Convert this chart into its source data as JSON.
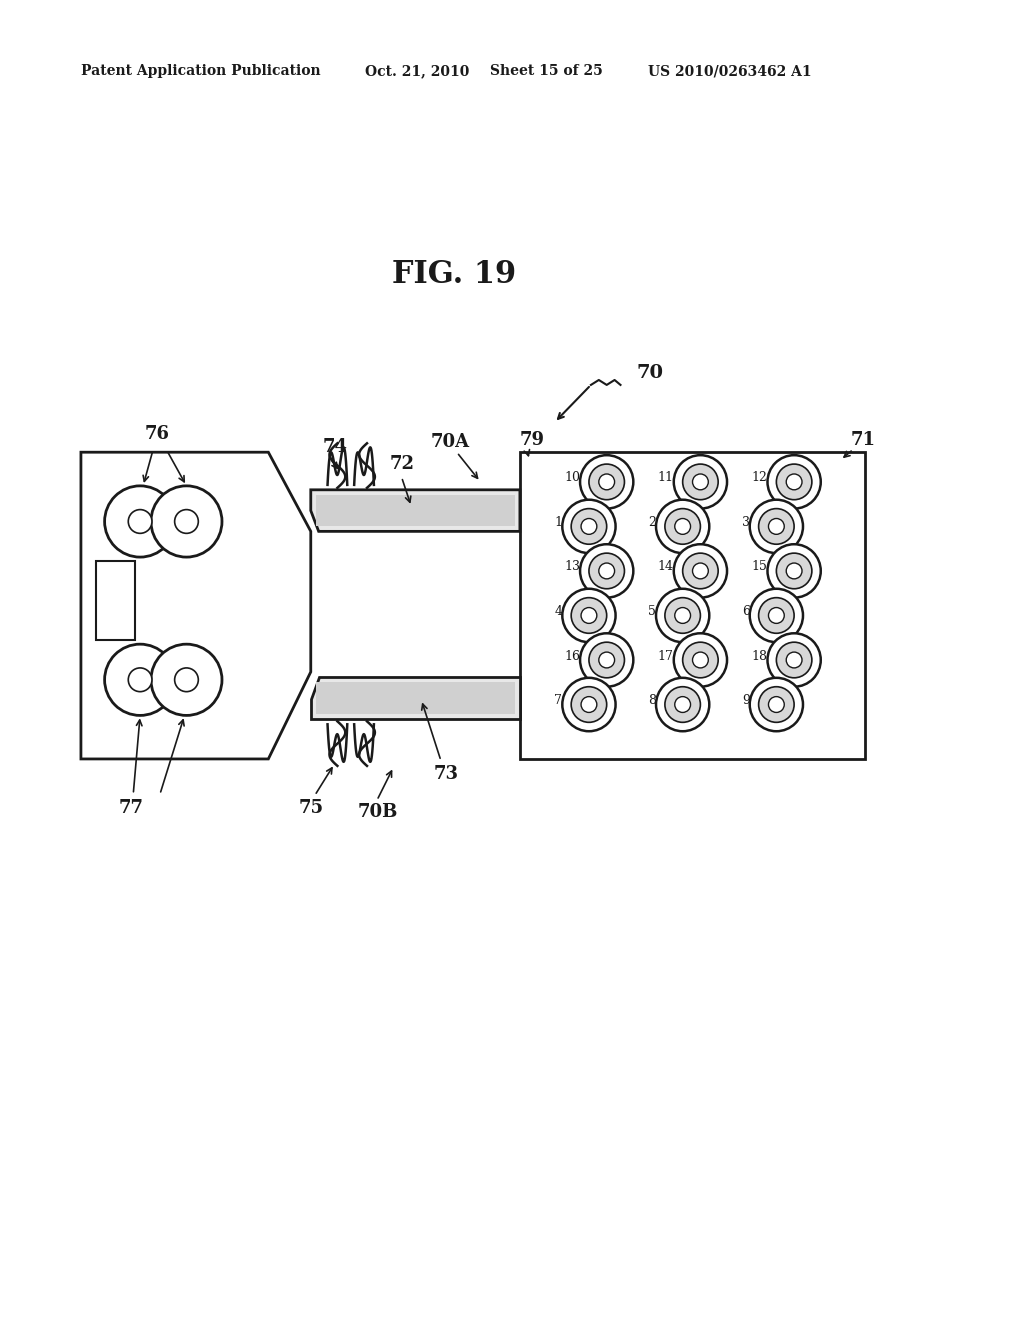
{
  "bg_color": "#ffffff",
  "line_color": "#1a1a1a",
  "header_left": "Patent Application Publication",
  "header_mid": "Oct. 21, 2010  Sheet 15 of 25",
  "header_right": "US 2010/0263462 A1",
  "fig_title": "FIG. 19",
  "connector_pins": [
    {
      "num": "10",
      "col": 0,
      "row": 0
    },
    {
      "num": "11",
      "col": 1,
      "row": 0
    },
    {
      "num": "12",
      "col": 2,
      "row": 0
    },
    {
      "num": "1",
      "col": 0,
      "row": 1
    },
    {
      "num": "2",
      "col": 1,
      "row": 1
    },
    {
      "num": "3",
      "col": 2,
      "row": 1
    },
    {
      "num": "13",
      "col": 0,
      "row": 2
    },
    {
      "num": "14",
      "col": 1,
      "row": 2
    },
    {
      "num": "15",
      "col": 2,
      "row": 2
    },
    {
      "num": "4",
      "col": 0,
      "row": 3
    },
    {
      "num": "5",
      "col": 1,
      "row": 3
    },
    {
      "num": "6",
      "col": 2,
      "row": 3
    },
    {
      "num": "16",
      "col": 0,
      "row": 4
    },
    {
      "num": "17",
      "col": 1,
      "row": 4
    },
    {
      "num": "18",
      "col": 2,
      "row": 4
    },
    {
      "num": "7",
      "col": 0,
      "row": 5
    },
    {
      "num": "8",
      "col": 1,
      "row": 5
    },
    {
      "num": "9",
      "col": 2,
      "row": 5
    }
  ]
}
